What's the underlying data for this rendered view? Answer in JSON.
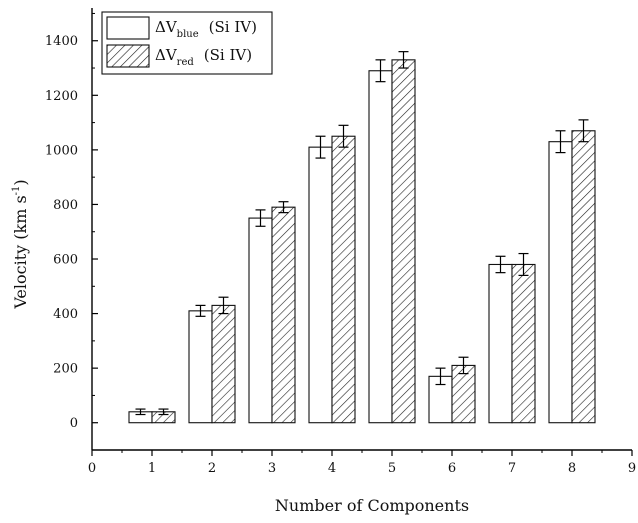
{
  "chart_data": {
    "type": "bar",
    "xlabel": "Number of Components",
    "ylabel": "Velocity (km s",
    "ylabel_superscript": "-1",
    "ylabel_suffix": ")",
    "categories": [
      1,
      2,
      3,
      4,
      5,
      6,
      7,
      8
    ],
    "xlim": [
      0,
      9
    ],
    "ylim": [
      -100,
      1520
    ],
    "x_ticks": [
      0,
      1,
      2,
      3,
      4,
      5,
      6,
      7,
      8,
      9
    ],
    "y_ticks": [
      0,
      200,
      400,
      600,
      800,
      1000,
      1200,
      1400
    ],
    "legend_placement": "top-left",
    "grid": false,
    "series": [
      {
        "name": "blue",
        "legend_main": "ΔV",
        "legend_sub": "blue",
        "legend_suffix": "(Si IV)",
        "fill": "plain",
        "values": [
          40,
          410,
          750,
          1010,
          1290,
          170,
          580,
          1030
        ],
        "errors": [
          10,
          20,
          30,
          40,
          40,
          30,
          30,
          40
        ]
      },
      {
        "name": "red",
        "legend_main": "ΔV",
        "legend_sub": "red",
        "legend_suffix": "(Si IV)",
        "fill": "hatched",
        "values": [
          40,
          430,
          790,
          1050,
          1330,
          210,
          580,
          1070
        ],
        "errors": [
          10,
          30,
          20,
          40,
          30,
          30,
          40,
          40
        ]
      }
    ]
  }
}
